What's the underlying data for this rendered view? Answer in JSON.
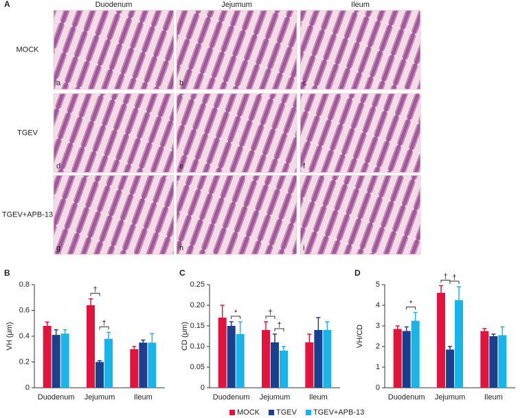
{
  "panel_a": {
    "label": "A",
    "columns": [
      "Duodenum",
      "Jejumum",
      "Ileum"
    ],
    "rows": [
      "MOCK",
      "TGEV",
      "TGEV+APB-13"
    ],
    "image_labels": [
      "a",
      "b",
      "c",
      "d",
      "e",
      "f",
      "g",
      "h",
      "i"
    ]
  },
  "legend": [
    {
      "name": "MOCK",
      "color": "#e0143c"
    },
    {
      "name": "TGEV",
      "color": "#1a3f8f"
    },
    {
      "name": "TGEV+APB-13",
      "color": "#1ab4e8"
    }
  ],
  "chart_data": [
    {
      "type": "bar",
      "panel": "B",
      "ylabel": "VH (μm)",
      "categories": [
        "Duodenum",
        "Jejumum",
        "Ileum"
      ],
      "ylim": [
        0,
        0.8
      ],
      "yticks": [
        0,
        0.2,
        0.4,
        0.6,
        0.8
      ],
      "series": [
        {
          "values": [
            0.48,
            0.64,
            0.3
          ],
          "errors": [
            0.03,
            0.05,
            0.02
          ]
        },
        {
          "values": [
            0.41,
            0.2,
            0.35
          ],
          "errors": [
            0.04,
            0.01,
            0.02
          ]
        },
        {
          "values": [
            0.42,
            0.38,
            0.35
          ],
          "errors": [
            0.03,
            0.05,
            0.07
          ]
        }
      ],
      "annotations": [
        {
          "label": "†",
          "category": 1,
          "pair": [
            0,
            1
          ]
        },
        {
          "label": "†",
          "category": 1,
          "pair": [
            1,
            2
          ]
        }
      ]
    },
    {
      "type": "bar",
      "panel": "C",
      "ylabel": "CD (μm)",
      "categories": [
        "Duodenum",
        "Jejumum",
        "Ileum"
      ],
      "ylim": [
        0,
        0.25
      ],
      "yticks": [
        0,
        0.05,
        {
          "value": 0.1,
          "label": "0.10"
        },
        0.15,
        {
          "value": 0.2,
          "label": "0.20"
        },
        0.25
      ],
      "series": [
        {
          "values": [
            0.17,
            0.14,
            0.11
          ],
          "errors": [
            0.03,
            0.02,
            0.02
          ]
        },
        {
          "values": [
            0.15,
            0.11,
            0.14
          ],
          "errors": [
            0.01,
            0.02,
            0.03
          ]
        },
        {
          "values": [
            0.13,
            0.09,
            0.14
          ],
          "errors": [
            0.03,
            0.01,
            0.02
          ]
        }
      ],
      "annotations": [
        {
          "label": "*",
          "category": 0,
          "pair": [
            1,
            2
          ]
        },
        {
          "label": "†",
          "category": 1,
          "pair": [
            0,
            1
          ]
        },
        {
          "label": "†",
          "category": 1,
          "pair": [
            1,
            2
          ]
        }
      ]
    },
    {
      "type": "bar",
      "panel": "D",
      "ylabel": "VH/CD",
      "categories": [
        "Duodenum",
        "Jejumum",
        "Ileum"
      ],
      "ylim": [
        0,
        5
      ],
      "yticks": [
        0,
        1,
        2,
        3,
        4,
        5
      ],
      "series": [
        {
          "values": [
            2.85,
            4.6,
            2.75
          ],
          "errors": [
            0.15,
            0.35,
            0.12
          ]
        },
        {
          "values": [
            2.75,
            1.85,
            2.5
          ],
          "errors": [
            0.2,
            0.15,
            0.1
          ]
        },
        {
          "values": [
            3.25,
            4.25,
            2.55
          ],
          "errors": [
            0.4,
            0.65,
            0.4
          ]
        }
      ],
      "annotations": [
        {
          "label": "*",
          "category": 0,
          "pair": [
            1,
            2
          ]
        },
        {
          "label": "†",
          "category": 1,
          "pair": [
            0,
            1
          ]
        },
        {
          "label": "†",
          "category": 1,
          "pair": [
            1,
            2
          ]
        }
      ]
    }
  ]
}
